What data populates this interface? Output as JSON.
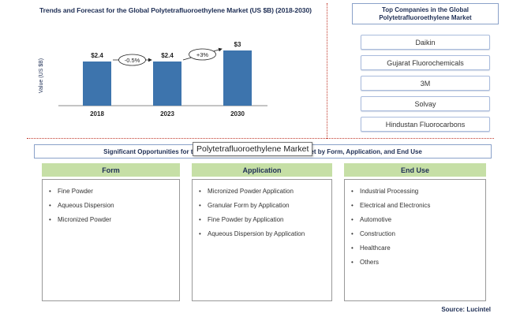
{
  "chart_data": {
    "type": "bar",
    "title": "Trends and Forecast for the Global Polytetrafluoroethylene Market (US $B) (2018-2030)",
    "ylabel": "Value (US $B)",
    "xlabel": "",
    "categories": [
      "2018",
      "2023",
      "2030"
    ],
    "values": [
      2.4,
      2.4,
      3
    ],
    "data_labels": [
      "$2.4",
      "$2.4",
      "$3"
    ],
    "ylim": [
      0,
      3.6
    ],
    "bar_color": "#3d74ad",
    "growth_annotations": [
      "-0.5%",
      "+3%"
    ],
    "grid": false,
    "legend": "none"
  },
  "companies": {
    "header": "Top Companies in the Global Polytetrafluoroethylene Market",
    "items": [
      "Daikin",
      "Gujarat Fluorochemicals",
      "3M",
      "Solvay",
      "Hindustan Fluorocarbons"
    ]
  },
  "opportunities": {
    "banner": "Significant Opportunities for the Global Polytetrafluoroethylene Market by Form, Application, and End Use",
    "tooltip": "Polytetrafluoroethylene Market",
    "columns": [
      {
        "title": "Form",
        "items": [
          "Fine Powder",
          "Aqueous Dispersion",
          "Micronized Powder"
        ]
      },
      {
        "title": "Application",
        "items": [
          "Micronized Powder Application",
          "Granular Form by Application",
          "Fine Powder by Application",
          "Aqueous Dispersion by Application"
        ]
      },
      {
        "title": "End Use",
        "items": [
          "Industrial Processing",
          "Electrical and Electronics",
          "Automotive",
          "Construction",
          "Healthcare",
          "Others"
        ]
      }
    ],
    "header_color": "#c6dfa6"
  },
  "source": "Source: Lucintel"
}
